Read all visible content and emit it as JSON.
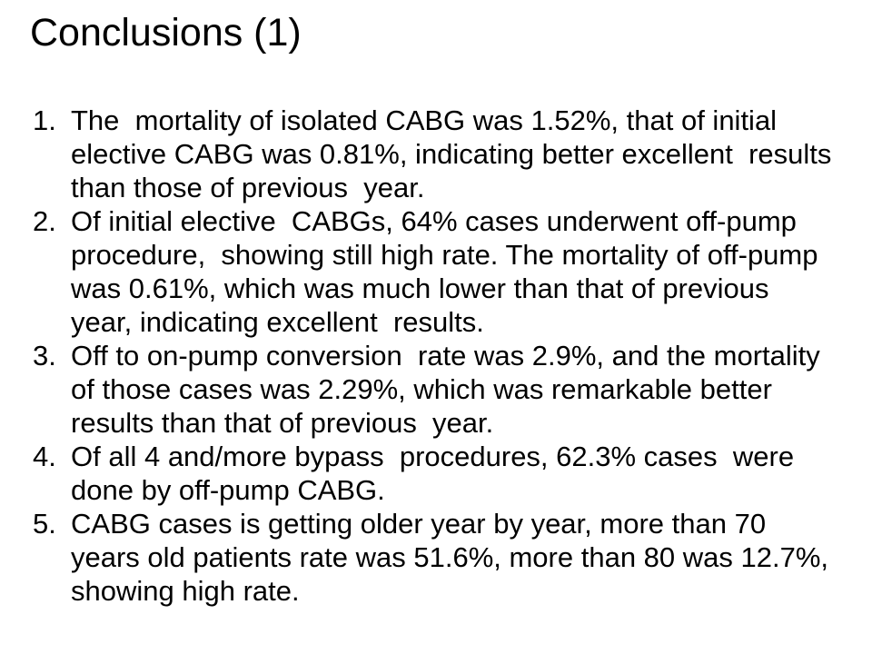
{
  "slide": {
    "title": "Conclusions (1)",
    "list": {
      "items": [
        {
          "number": "1.",
          "lines": [
            "The  mortality of isolated CABG was 1.52%, that of initial",
            "elective CABG was 0.81%, indicating better excellent  results",
            "than those of previous  year."
          ]
        },
        {
          "number": "2.",
          "lines": [
            "Of initial elective  CABGs, 64% cases underwent off-pump",
            "procedure,  showing still high rate. The mortality of off-pump",
            "was 0.61%, which was much lower than that of previous",
            "year, indicating excellent  results."
          ]
        },
        {
          "number": "3.",
          "lines": [
            "Off to on-pump conversion  rate was 2.9%, and the mortality",
            "of those cases was 2.29%, which was remarkable better",
            "results than that of previous  year."
          ]
        },
        {
          "number": "4.",
          "lines": [
            "Of all 4 and/more bypass  procedures, 62.3% cases  were",
            "done by off-pump CABG."
          ]
        },
        {
          "number": "5.",
          "lines": [
            "CABG cases is getting older year by year, more than 70",
            "years old patients rate was 51.6%, more than 80 was 12.7%,",
            "showing high rate."
          ]
        }
      ]
    }
  }
}
